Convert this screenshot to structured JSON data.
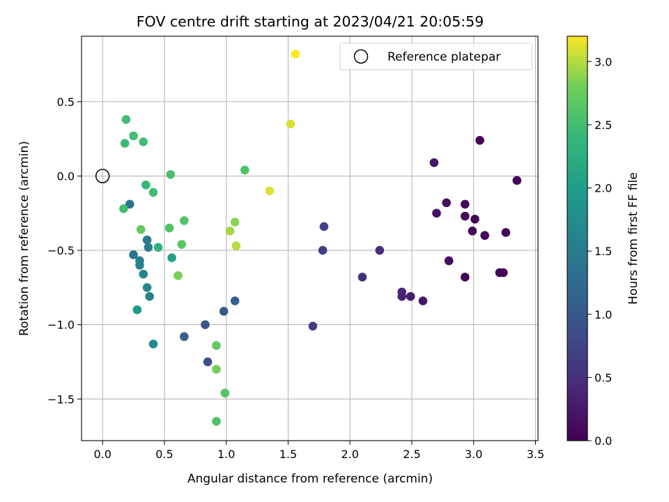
{
  "chart_data": {
    "type": "scatter",
    "title": "FOV centre drift starting at 2023/04/21 20:05:59",
    "xlabel": "Angular distance from reference (arcmin)",
    "ylabel": "Rotation from reference (arcmin)",
    "xlim": [
      -0.17,
      3.52
    ],
    "ylim": [
      -1.78,
      0.94
    ],
    "xticks": [
      0.0,
      0.5,
      1.0,
      1.5,
      2.0,
      2.5,
      3.0,
      3.5
    ],
    "xtick_labels": [
      "0.0",
      "0.5",
      "1.0",
      "1.5",
      "2.0",
      "2.5",
      "3.0",
      "3.5"
    ],
    "yticks": [
      0.5,
      0.0,
      -0.5,
      -1.0,
      -1.5
    ],
    "ytick_labels": [
      "0.5",
      "0.0",
      "−0.5",
      "−1.0",
      "−1.5"
    ],
    "grid": true,
    "legend": {
      "position": "upper right",
      "entries": [
        "Reference platepar"
      ]
    },
    "colorbar": {
      "label": "Hours from first FF file",
      "colormap": "viridis",
      "range": [
        0.0,
        3.2
      ],
      "ticks": [
        0.0,
        0.5,
        1.0,
        1.5,
        2.0,
        2.5,
        3.0
      ],
      "tick_labels": [
        "0.0",
        "0.5",
        "1.0",
        "1.5",
        "2.0",
        "2.5",
        "3.0"
      ]
    },
    "reference_point": {
      "x": 0.0,
      "y": 0.0,
      "label": "Reference platepar"
    },
    "points": [
      {
        "x": 3.05,
        "y": 0.24,
        "c": 0.02
      },
      {
        "x": 3.35,
        "y": -0.03,
        "c": 0.05
      },
      {
        "x": 3.26,
        "y": -0.38,
        "c": 0.03
      },
      {
        "x": 3.09,
        "y": -0.4,
        "c": 0.06
      },
      {
        "x": 2.99,
        "y": -0.37,
        "c": 0.05
      },
      {
        "x": 3.01,
        "y": -0.29,
        "c": 0.04
      },
      {
        "x": 2.93,
        "y": -0.19,
        "c": 0.08
      },
      {
        "x": 2.93,
        "y": -0.27,
        "c": 0.07
      },
      {
        "x": 3.21,
        "y": -0.65,
        "c": 0.05
      },
      {
        "x": 3.24,
        "y": -0.65,
        "c": 0.04
      },
      {
        "x": 2.93,
        "y": -0.68,
        "c": 0.03
      },
      {
        "x": 2.78,
        "y": -0.18,
        "c": 0.13
      },
      {
        "x": 2.7,
        "y": -0.25,
        "c": 0.15
      },
      {
        "x": 2.68,
        "y": 0.09,
        "c": 0.22
      },
      {
        "x": 2.8,
        "y": -0.57,
        "c": 0.12
      },
      {
        "x": 2.59,
        "y": -0.84,
        "c": 0.25
      },
      {
        "x": 2.49,
        "y": -0.81,
        "c": 0.3
      },
      {
        "x": 2.42,
        "y": -0.78,
        "c": 0.38
      },
      {
        "x": 2.42,
        "y": -0.81,
        "c": 0.35
      },
      {
        "x": 2.24,
        "y": -0.5,
        "c": 0.45
      },
      {
        "x": 2.1,
        "y": -0.68,
        "c": 0.5
      },
      {
        "x": 1.79,
        "y": -0.34,
        "c": 0.72
      },
      {
        "x": 1.78,
        "y": -0.5,
        "c": 0.68
      },
      {
        "x": 1.7,
        "y": -1.01,
        "c": 0.66
      },
      {
        "x": 1.07,
        "y": -0.84,
        "c": 1.08
      },
      {
        "x": 0.98,
        "y": -0.91,
        "c": 1.02
      },
      {
        "x": 0.83,
        "y": -1.0,
        "c": 0.95
      },
      {
        "x": 0.85,
        "y": -1.25,
        "c": 0.92
      },
      {
        "x": 0.66,
        "y": -1.08,
        "c": 1.12
      },
      {
        "x": 0.22,
        "y": -0.19,
        "c": 1.35
      },
      {
        "x": 0.25,
        "y": -0.53,
        "c": 1.38
      },
      {
        "x": 0.36,
        "y": -0.43,
        "c": 1.45
      },
      {
        "x": 0.37,
        "y": -0.48,
        "c": 1.55
      },
      {
        "x": 0.3,
        "y": -0.57,
        "c": 1.52
      },
      {
        "x": 0.3,
        "y": -0.6,
        "c": 1.6
      },
      {
        "x": 0.33,
        "y": -0.66,
        "c": 1.65
      },
      {
        "x": 0.36,
        "y": -0.75,
        "c": 1.68
      },
      {
        "x": 0.38,
        "y": -0.81,
        "c": 1.62
      },
      {
        "x": 0.41,
        "y": -1.13,
        "c": 1.72
      },
      {
        "x": 0.28,
        "y": -0.9,
        "c": 1.92
      },
      {
        "x": 0.56,
        "y": -0.55,
        "c": 2.05
      },
      {
        "x": 0.45,
        "y": -0.48,
        "c": 2.3
      },
      {
        "x": 0.35,
        "y": -0.06,
        "c": 2.4
      },
      {
        "x": 0.41,
        "y": -0.11,
        "c": 2.48
      },
      {
        "x": 0.17,
        "y": -0.22,
        "c": 2.5
      },
      {
        "x": 0.31,
        "y": -0.36,
        "c": 2.72
      },
      {
        "x": 0.18,
        "y": 0.22,
        "c": 2.45
      },
      {
        "x": 0.19,
        "y": 0.38,
        "c": 2.5
      },
      {
        "x": 0.25,
        "y": 0.27,
        "c": 2.5
      },
      {
        "x": 0.33,
        "y": 0.23,
        "c": 2.5
      },
      {
        "x": 0.55,
        "y": 0.01,
        "c": 2.55
      },
      {
        "x": 0.54,
        "y": -0.35,
        "c": 2.58
      },
      {
        "x": 0.66,
        "y": -0.3,
        "c": 2.62
      },
      {
        "x": 0.64,
        "y": -0.46,
        "c": 2.65
      },
      {
        "x": 0.61,
        "y": -0.67,
        "c": 2.82
      },
      {
        "x": 1.15,
        "y": 0.04,
        "c": 2.58
      },
      {
        "x": 0.92,
        "y": -1.14,
        "c": 2.72
      },
      {
        "x": 0.92,
        "y": -1.3,
        "c": 2.82
      },
      {
        "x": 0.99,
        "y": -1.46,
        "c": 2.62
      },
      {
        "x": 0.92,
        "y": -1.65,
        "c": 2.58
      },
      {
        "x": 1.07,
        "y": -0.31,
        "c": 2.88
      },
      {
        "x": 1.03,
        "y": -0.37,
        "c": 2.95
      },
      {
        "x": 1.08,
        "y": -0.47,
        "c": 3.0
      },
      {
        "x": 1.35,
        "y": -0.1,
        "c": 3.1
      },
      {
        "x": 1.52,
        "y": 0.35,
        "c": 3.1
      },
      {
        "x": 1.56,
        "y": 0.82,
        "c": 3.2
      }
    ]
  }
}
